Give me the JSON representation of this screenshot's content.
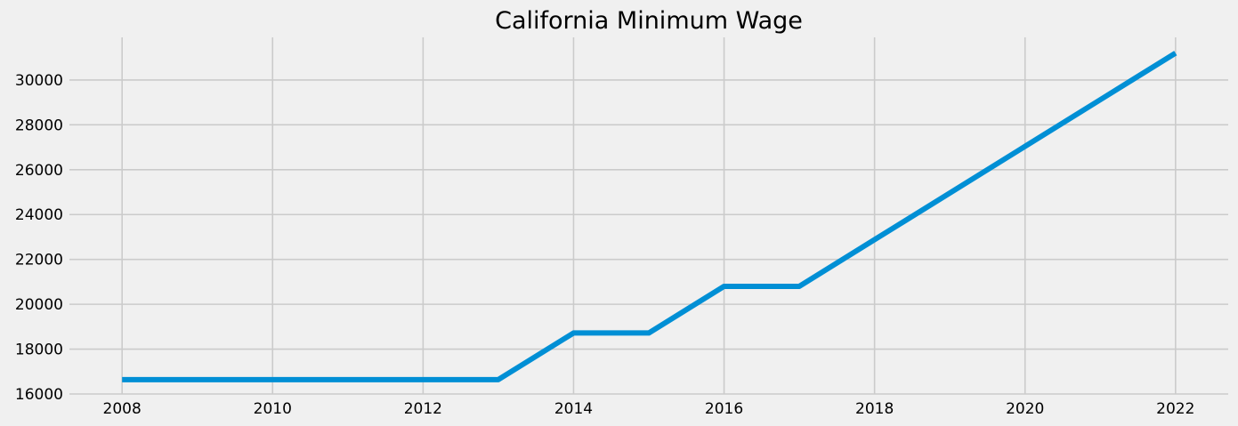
{
  "chart_data": {
    "type": "line",
    "title": "California Minimum Wage",
    "xlabel": "",
    "ylabel": "",
    "x": [
      2008,
      2009,
      2010,
      2011,
      2012,
      2013,
      2014,
      2015,
      2016,
      2017,
      2018,
      2019,
      2020,
      2021,
      2022
    ],
    "series": [
      {
        "values": [
          16640,
          16640,
          16640,
          16640,
          16640,
          16640,
          18720,
          18720,
          20800,
          20800,
          22880,
          24960,
          27040,
          29120,
          31200
        ]
      }
    ],
    "xticks": [
      "2008",
      "2010",
      "2012",
      "2014",
      "2016",
      "2018",
      "2020",
      "2022"
    ],
    "yticks": [
      "16000",
      "18000",
      "20000",
      "22000",
      "24000",
      "26000",
      "28000",
      "30000"
    ],
    "xlim": [
      2007.3,
      2022.7
    ],
    "ylim": [
      16000,
      31900
    ],
    "grid": true,
    "colors": {
      "line": "#008fd5",
      "grid": "#cbcbcb",
      "background": "#f0f0f0"
    }
  }
}
